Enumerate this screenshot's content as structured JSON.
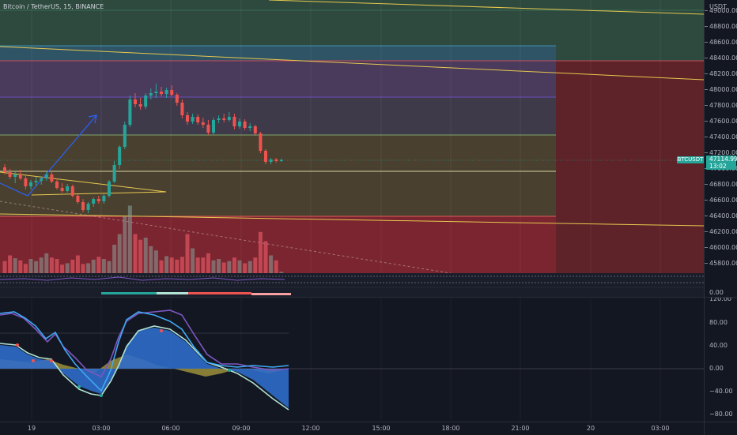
{
  "symbol_title": "Bitcoin / TetherUS, 15, BINANCE",
  "colors": {
    "background": "#131722",
    "up": "#26a69a",
    "down": "#ef5350",
    "green_zone": "#2e4a3e",
    "purple_zone": "#4a3a5c",
    "red_zone": "#7a2530",
    "olive_zone": "#4a4030",
    "trend_line": "#e6c84f",
    "blue_arrow": "#2962ff",
    "osc_fill_blue": "#2f6cc9",
    "osc_fill_olive": "#9c8f3a",
    "osc_line_mint": "#b2e3d2",
    "osc_line_purple": "#7e57c2",
    "osc_line_blue": "#3fa9f5"
  },
  "price_axis": {
    "unit": "USDT",
    "labels": [
      "49000.00",
      "48800.00",
      "48600.00",
      "48400.00",
      "48200.00",
      "48000.00",
      "47800.00",
      "47600.00",
      "47400.00",
      "47200.00",
      "47000.00",
      "46800.00",
      "46600.00",
      "46400.00",
      "46200.00",
      "46000.00",
      "45800.00"
    ]
  },
  "current_price": {
    "tag": "BTCUSDT",
    "price": "47114.99",
    "countdown": "13:02"
  },
  "indicator_axis": {
    "label": "0.00"
  },
  "osc_axis": {
    "labels": [
      "120.00",
      "80.00",
      "40.00",
      "0.00",
      "−40.00",
      "−80.00"
    ]
  },
  "time_axis": {
    "labels": [
      "19",
      "03:00",
      "06:00",
      "09:00",
      "12:00",
      "15:00",
      "18:00",
      "21:00",
      "20",
      "03:00"
    ]
  },
  "chart_data": {
    "type": "candlestick",
    "candles": [
      {
        "o": 47020,
        "h": 47060,
        "l": 46930,
        "c": 46960
      },
      {
        "o": 46960,
        "h": 47000,
        "l": 46870,
        "c": 46900
      },
      {
        "o": 46900,
        "h": 46960,
        "l": 46820,
        "c": 46930
      },
      {
        "o": 46930,
        "h": 46990,
        "l": 46860,
        "c": 46880
      },
      {
        "o": 46880,
        "h": 46920,
        "l": 46740,
        "c": 46780
      },
      {
        "o": 46780,
        "h": 46860,
        "l": 46740,
        "c": 46830
      },
      {
        "o": 46830,
        "h": 46900,
        "l": 46780,
        "c": 46850
      },
      {
        "o": 46850,
        "h": 46910,
        "l": 46800,
        "c": 46880
      },
      {
        "o": 46880,
        "h": 46960,
        "l": 46850,
        "c": 46930
      },
      {
        "o": 46930,
        "h": 46970,
        "l": 46820,
        "c": 46840
      },
      {
        "o": 46840,
        "h": 46880,
        "l": 46740,
        "c": 46760
      },
      {
        "o": 46760,
        "h": 46820,
        "l": 46700,
        "c": 46720
      },
      {
        "o": 46720,
        "h": 46810,
        "l": 46700,
        "c": 46780
      },
      {
        "o": 46780,
        "h": 46800,
        "l": 46640,
        "c": 46660
      },
      {
        "o": 46660,
        "h": 46680,
        "l": 46560,
        "c": 46580
      },
      {
        "o": 46580,
        "h": 46620,
        "l": 46450,
        "c": 46480
      },
      {
        "o": 46480,
        "h": 46580,
        "l": 46440,
        "c": 46560
      },
      {
        "o": 46560,
        "h": 46640,
        "l": 46520,
        "c": 46620
      },
      {
        "o": 46620,
        "h": 46660,
        "l": 46560,
        "c": 46590
      },
      {
        "o": 46590,
        "h": 46680,
        "l": 46560,
        "c": 46660
      },
      {
        "o": 46660,
        "h": 46860,
        "l": 46640,
        "c": 46840
      },
      {
        "o": 46840,
        "h": 47100,
        "l": 46820,
        "c": 47050
      },
      {
        "o": 47050,
        "h": 47300,
        "l": 47000,
        "c": 47280
      },
      {
        "o": 47280,
        "h": 47600,
        "l": 47250,
        "c": 47560
      },
      {
        "o": 47560,
        "h": 47930,
        "l": 47530,
        "c": 47880
      },
      {
        "o": 47880,
        "h": 47960,
        "l": 47780,
        "c": 47820
      },
      {
        "o": 47820,
        "h": 47900,
        "l": 47750,
        "c": 47790
      },
      {
        "o": 47790,
        "h": 47960,
        "l": 47760,
        "c": 47930
      },
      {
        "o": 47930,
        "h": 48020,
        "l": 47880,
        "c": 47960
      },
      {
        "o": 47960,
        "h": 48080,
        "l": 47900,
        "c": 47980
      },
      {
        "o": 47980,
        "h": 48040,
        "l": 47920,
        "c": 47950
      },
      {
        "o": 47950,
        "h": 48030,
        "l": 47900,
        "c": 48000
      },
      {
        "o": 48000,
        "h": 48060,
        "l": 47920,
        "c": 47940
      },
      {
        "o": 47940,
        "h": 47960,
        "l": 47800,
        "c": 47840
      },
      {
        "o": 47840,
        "h": 47880,
        "l": 47640,
        "c": 47680
      },
      {
        "o": 47680,
        "h": 47720,
        "l": 47560,
        "c": 47600
      },
      {
        "o": 47600,
        "h": 47700,
        "l": 47570,
        "c": 47660
      },
      {
        "o": 47660,
        "h": 47690,
        "l": 47560,
        "c": 47590
      },
      {
        "o": 47590,
        "h": 47650,
        "l": 47520,
        "c": 47560
      },
      {
        "o": 47560,
        "h": 47620,
        "l": 47430,
        "c": 47460
      },
      {
        "o": 47460,
        "h": 47650,
        "l": 47440,
        "c": 47620
      },
      {
        "o": 47620,
        "h": 47680,
        "l": 47580,
        "c": 47640
      },
      {
        "o": 47640,
        "h": 47700,
        "l": 47590,
        "c": 47620
      },
      {
        "o": 47620,
        "h": 47720,
        "l": 47600,
        "c": 47660
      },
      {
        "o": 47660,
        "h": 47700,
        "l": 47500,
        "c": 47540
      },
      {
        "o": 47540,
        "h": 47640,
        "l": 47510,
        "c": 47600
      },
      {
        "o": 47600,
        "h": 47630,
        "l": 47490,
        "c": 47520
      },
      {
        "o": 47520,
        "h": 47580,
        "l": 47480,
        "c": 47540
      },
      {
        "o": 47540,
        "h": 47560,
        "l": 47420,
        "c": 47450
      },
      {
        "o": 47450,
        "h": 47470,
        "l": 47200,
        "c": 47230
      },
      {
        "o": 47230,
        "h": 47250,
        "l": 47060,
        "c": 47090
      },
      {
        "o": 47090,
        "h": 47140,
        "l": 47060,
        "c": 47120
      },
      {
        "o": 47120,
        "h": 47140,
        "l": 47080,
        "c": 47100
      },
      {
        "o": 47100,
        "h": 47130,
        "l": 47090,
        "c": 47115
      }
    ],
    "volume": [
      0.17,
      0.25,
      0.21,
      0.18,
      0.13,
      0.2,
      0.17,
      0.22,
      0.28,
      0.22,
      0.2,
      0.12,
      0.14,
      0.19,
      0.25,
      0.13,
      0.14,
      0.19,
      0.23,
      0.2,
      0.17,
      0.4,
      0.55,
      0.8,
      0.95,
      0.55,
      0.47,
      0.5,
      0.38,
      0.32,
      0.18,
      0.24,
      0.22,
      0.19,
      0.23,
      0.55,
      0.35,
      0.22,
      0.22,
      0.28,
      0.18,
      0.2,
      0.15,
      0.17,
      0.22,
      0.18,
      0.14,
      0.17,
      0.22,
      0.58,
      0.45,
      0.25,
      0.18,
      0.02
    ],
    "ylim": [
      45650,
      49050
    ]
  }
}
